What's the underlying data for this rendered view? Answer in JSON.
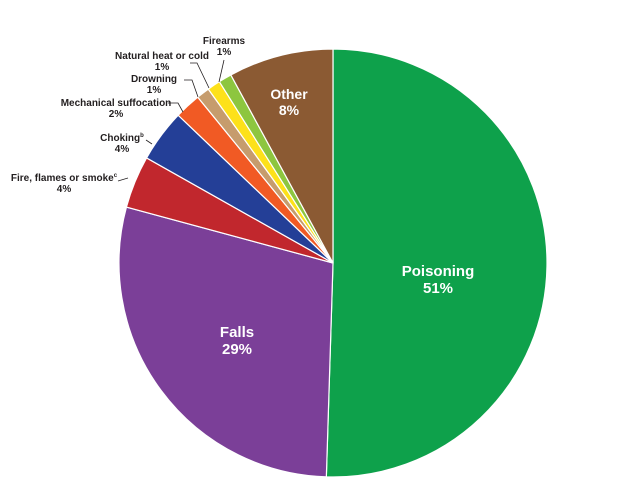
{
  "chart_data": {
    "type": "pie",
    "slices": [
      {
        "label": "Poisoning",
        "pct_label": "51%",
        "value": 51,
        "color": "#0ea14b"
      },
      {
        "label": "Falls",
        "pct_label": "29%",
        "value": 29,
        "color": "#7b3f98"
      },
      {
        "label": "Fire, flames or smoke",
        "footnote": "c",
        "pct_label": "4%",
        "value": 4,
        "color": "#c1272d"
      },
      {
        "label": "Choking",
        "footnote": "b",
        "pct_label": "4%",
        "value": 4,
        "color": "#243f97"
      },
      {
        "label": "Mechanical suffocation",
        "pct_label": "2%",
        "value": 2,
        "color": "#f15a24"
      },
      {
        "label": "Drowning",
        "pct_label": "1%",
        "value": 1,
        "color": "#c69c6d"
      },
      {
        "label": "Natural heat or cold",
        "pct_label": "1%",
        "value": 1,
        "color": "#fde11a"
      },
      {
        "label": "Firearms",
        "pct_label": "1%",
        "value": 1,
        "color": "#8dc63f"
      },
      {
        "label": "Other",
        "pct_label": "8%",
        "value": 8,
        "color": "#8b5a33"
      }
    ]
  }
}
